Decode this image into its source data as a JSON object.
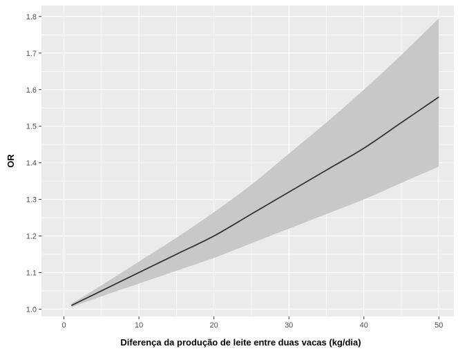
{
  "chart_data": {
    "type": "line",
    "title": "",
    "xlabel": "Diferença da produção de leite entre duas vacas (kg/dia)",
    "ylabel": "OR",
    "xlim": [
      -3,
      52
    ],
    "ylim": [
      0.98,
      1.83
    ],
    "x_ticks": [
      0,
      10,
      20,
      30,
      40,
      50
    ],
    "y_ticks": [
      1.0,
      1.1,
      1.2,
      1.3,
      1.4,
      1.5,
      1.6,
      1.7,
      1.8
    ],
    "x_tick_labels": [
      "0",
      "10",
      "20",
      "30",
      "40",
      "50"
    ],
    "y_tick_labels": [
      "1.0",
      "1.1",
      "1.2",
      "1.3",
      "1.4",
      "1.5",
      "1.6",
      "1.7",
      "1.8"
    ],
    "grid": true,
    "x": [
      1,
      5,
      10,
      15,
      20,
      25,
      30,
      35,
      40,
      45,
      50
    ],
    "series": [
      {
        "values": [
          1.01,
          1.05,
          1.1,
          1.15,
          1.2,
          1.26,
          1.32,
          1.38,
          1.44,
          1.51,
          1.58
        ]
      }
    ],
    "confidence_band": {
      "lower": [
        1.005,
        1.035,
        1.07,
        1.105,
        1.14,
        1.18,
        1.22,
        1.26,
        1.3,
        1.345,
        1.39
      ],
      "upper": [
        1.015,
        1.065,
        1.13,
        1.195,
        1.265,
        1.34,
        1.425,
        1.51,
        1.6,
        1.695,
        1.795
      ]
    },
    "colors": {
      "panel_background": "#ebebeb",
      "grid": "#ffffff",
      "band": "#c8c8c8",
      "line": "#333333"
    }
  }
}
